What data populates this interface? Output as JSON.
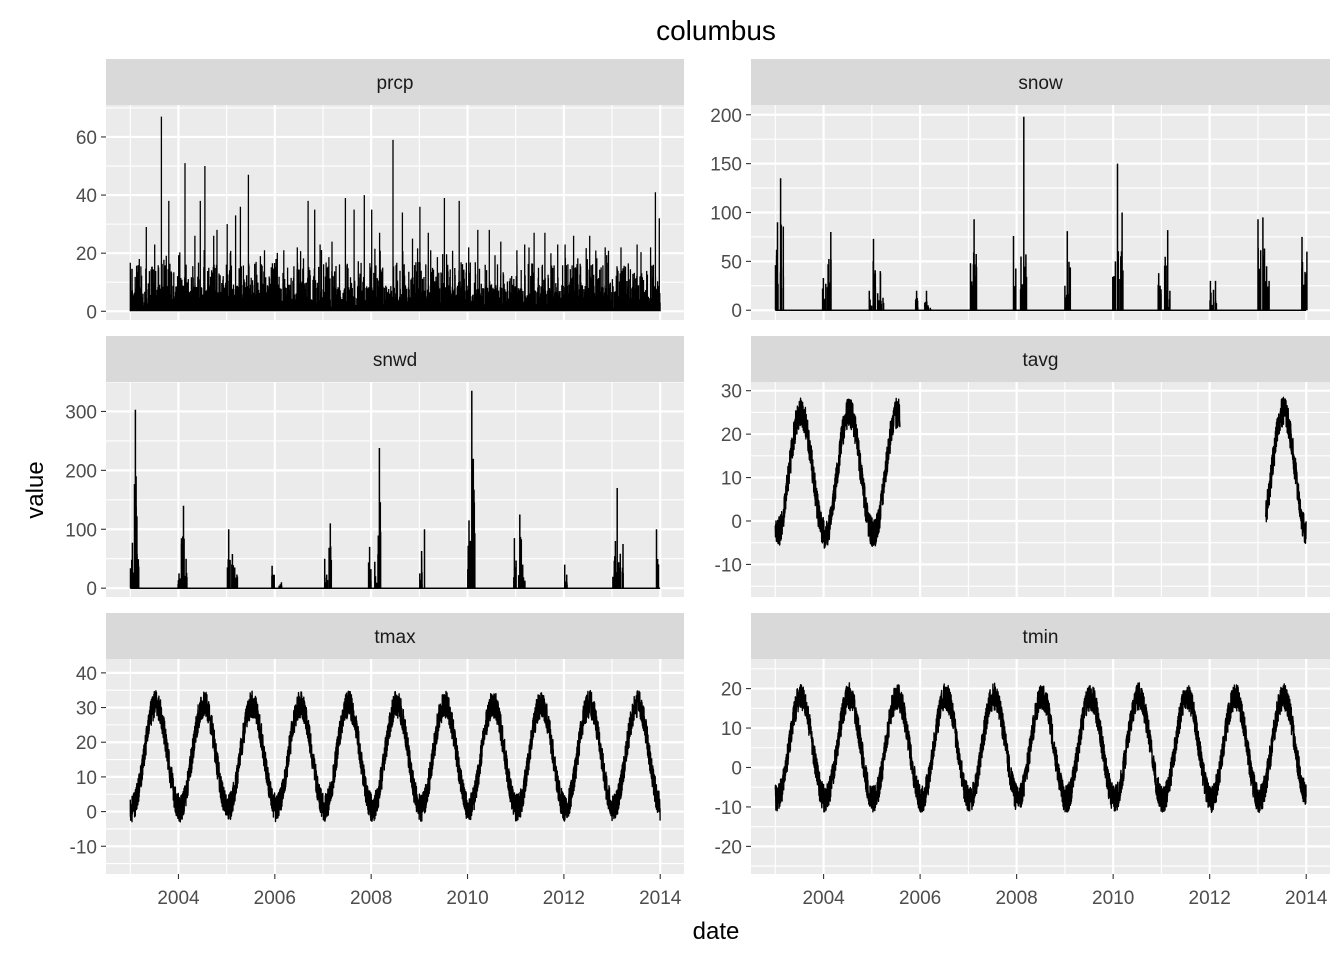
{
  "chart_data": {
    "type": "line",
    "title": "columbus",
    "xlabel": "date",
    "ylabel": "value",
    "x_range": [
      "2002-07-01",
      "2014-06-30"
    ],
    "x_ticks": [
      "2004",
      "2006",
      "2008",
      "2010",
      "2012",
      "2014"
    ],
    "data_range": [
      "2003-01-01",
      "2013-12-31"
    ],
    "grid": true,
    "colors": {
      "panel": "#ebebeb",
      "strip": "#d9d9d9",
      "grid": "#ffffff",
      "line": "#000000",
      "tick_text": "#4d4d4d"
    },
    "panels": [
      {
        "name": "prcp",
        "ylim": [
          -3,
          71
        ],
        "yticks": [
          0,
          20,
          40,
          60
        ],
        "ytick_labels": [
          "0",
          "20",
          "40",
          "60"
        ],
        "style": "spiky",
        "peaks": [
          [
            "2003-01-15",
            3
          ],
          [
            "2003-03-10",
            18
          ],
          [
            "2003-05-02",
            29
          ],
          [
            "2003-07-05",
            23
          ],
          [
            "2003-08-25",
            67
          ],
          [
            "2003-10-20",
            38
          ],
          [
            "2004-01-10",
            14
          ],
          [
            "2004-02-20",
            51
          ],
          [
            "2004-05-05",
            26
          ],
          [
            "2004-06-15",
            38
          ],
          [
            "2004-07-20",
            50
          ],
          [
            "2004-09-25",
            26
          ],
          [
            "2004-10-20",
            28
          ],
          [
            "2005-01-05",
            30
          ],
          [
            "2005-03-10",
            33
          ],
          [
            "2005-04-15",
            36
          ],
          [
            "2005-06-15",
            47
          ],
          [
            "2005-10-15",
            21
          ],
          [
            "2006-01-10",
            18
          ],
          [
            "2006-03-10",
            21
          ],
          [
            "2006-06-20",
            22
          ],
          [
            "2006-09-10",
            38
          ],
          [
            "2006-10-30",
            35
          ],
          [
            "2006-12-10",
            23
          ],
          [
            "2007-03-10",
            24
          ],
          [
            "2007-06-20",
            39
          ],
          [
            "2007-08-25",
            35
          ],
          [
            "2007-11-10",
            40
          ],
          [
            "2008-01-05",
            35
          ],
          [
            "2008-03-05",
            27
          ],
          [
            "2008-06-15",
            59
          ],
          [
            "2008-08-25",
            34
          ],
          [
            "2008-11-10",
            25
          ],
          [
            "2009-01-05",
            36
          ],
          [
            "2009-03-10",
            27
          ],
          [
            "2009-07-10",
            39
          ],
          [
            "2009-10-30",
            38
          ],
          [
            "2010-01-10",
            22
          ],
          [
            "2010-03-20",
            28
          ],
          [
            "2010-06-15",
            28
          ],
          [
            "2010-09-10",
            24
          ],
          [
            "2011-01-10",
            21
          ],
          [
            "2011-03-10",
            23
          ],
          [
            "2011-05-20",
            27
          ],
          [
            "2011-08-10",
            27
          ],
          [
            "2011-11-15",
            23
          ],
          [
            "2012-01-10",
            23
          ],
          [
            "2012-03-15",
            26
          ],
          [
            "2012-07-15",
            26
          ],
          [
            "2012-11-10",
            22
          ],
          [
            "2013-03-10",
            22
          ],
          [
            "2013-07-10",
            23
          ],
          [
            "2013-10-20",
            22
          ],
          [
            "2013-11-25",
            41
          ],
          [
            "2013-12-25",
            32
          ]
        ]
      },
      {
        "name": "snow",
        "ylim": [
          -10,
          210
        ],
        "yticks": [
          0,
          50,
          100,
          150,
          200
        ],
        "ytick_labels": [
          "0",
          "50",
          "100",
          "150",
          "200"
        ],
        "style": "winter",
        "peaks": [
          [
            "2003-01-10",
            90
          ],
          [
            "2003-02-05",
            58
          ],
          [
            "2003-02-20",
            135
          ],
          [
            "2004-01-05",
            33
          ],
          [
            "2004-01-25",
            47
          ],
          [
            "2004-02-15",
            80
          ],
          [
            "2004-12-20",
            20
          ],
          [
            "2005-01-20",
            73
          ],
          [
            "2005-02-25",
            40
          ],
          [
            "2005-03-20",
            38
          ],
          [
            "2005-12-10",
            20
          ],
          [
            "2006-02-10",
            20
          ],
          [
            "2006-03-10",
            5
          ],
          [
            "2007-01-20",
            48
          ],
          [
            "2007-02-20",
            93
          ],
          [
            "2007-12-20",
            76
          ],
          [
            "2008-02-10",
            55
          ],
          [
            "2008-03-05",
            198
          ],
          [
            "2009-01-10",
            25
          ],
          [
            "2009-01-30",
            81
          ],
          [
            "2010-01-10",
            50
          ],
          [
            "2010-02-10",
            150
          ],
          [
            "2010-03-05",
            100
          ],
          [
            "2010-12-20",
            38
          ],
          [
            "2011-02-05",
            82
          ],
          [
            "2011-03-05",
            20
          ],
          [
            "2012-01-10",
            30
          ],
          [
            "2012-02-10",
            30
          ],
          [
            "2013-01-10",
            93
          ],
          [
            "2013-02-20",
            95
          ],
          [
            "2013-03-15",
            45
          ],
          [
            "2013-12-10",
            75
          ],
          [
            "2013-12-25",
            60
          ]
        ]
      },
      {
        "name": "snwd",
        "ylim": [
          -15,
          350
        ],
        "yticks": [
          0,
          100,
          200,
          300
        ],
        "ytick_labels": [
          "0",
          "100",
          "200",
          "300"
        ],
        "style": "winter",
        "peaks": [
          [
            "2003-01-15",
            77
          ],
          [
            "2003-02-10",
            303
          ],
          [
            "2003-02-25",
            115
          ],
          [
            "2004-01-10",
            25
          ],
          [
            "2004-02-05",
            140
          ],
          [
            "2004-03-01",
            50
          ],
          [
            "2005-01-15",
            100
          ],
          [
            "2005-02-20",
            58
          ],
          [
            "2005-03-15",
            35
          ],
          [
            "2005-12-15",
            38
          ],
          [
            "2006-02-10",
            10
          ],
          [
            "2007-01-25",
            50
          ],
          [
            "2007-02-20",
            110
          ],
          [
            "2007-12-20",
            70
          ],
          [
            "2008-02-05",
            45
          ],
          [
            "2008-03-05",
            238
          ],
          [
            "2009-01-10",
            25
          ],
          [
            "2009-01-30",
            100
          ],
          [
            "2010-01-10",
            115
          ],
          [
            "2010-02-15",
            335
          ],
          [
            "2010-12-25",
            85
          ],
          [
            "2011-02-05",
            125
          ],
          [
            "2011-03-01",
            40
          ],
          [
            "2012-01-20",
            40
          ],
          [
            "2013-01-20",
            80
          ],
          [
            "2013-02-20",
            170
          ],
          [
            "2013-03-15",
            75
          ],
          [
            "2013-12-15",
            100
          ]
        ]
      },
      {
        "name": "tavg",
        "ylim": [
          -17.5,
          32
        ],
        "yticks": [
          -10,
          0,
          10,
          20,
          30
        ],
        "ytick_labels": [
          "-10",
          "0",
          "10",
          "20",
          "30"
        ],
        "style": "seasonal",
        "mean": 11,
        "amp": 14,
        "noise": 7,
        "segments": [
          [
            "2003-01-01",
            "2005-08-01"
          ],
          [
            "2013-03-01",
            "2013-12-31"
          ]
        ]
      },
      {
        "name": "tmax",
        "ylim": [
          -18,
          44
        ],
        "yticks": [
          -10,
          0,
          10,
          20,
          30,
          40
        ],
        "ytick_labels": [
          "-10",
          "0",
          "10",
          "20",
          "30",
          "40"
        ],
        "style": "seasonal",
        "mean": 16,
        "amp": 15,
        "noise": 8,
        "segments": [
          [
            "2003-01-01",
            "2013-12-31"
          ]
        ]
      },
      {
        "name": "tmin",
        "ylim": [
          -27,
          27.5
        ],
        "yticks": [
          -20,
          -10,
          0,
          10,
          20
        ],
        "ytick_labels": [
          "-20",
          "-10",
          "0",
          "10",
          "20"
        ],
        "style": "seasonal",
        "mean": 5,
        "amp": 13,
        "noise": 7,
        "segments": [
          [
            "2003-01-01",
            "2013-12-31"
          ]
        ]
      }
    ]
  }
}
